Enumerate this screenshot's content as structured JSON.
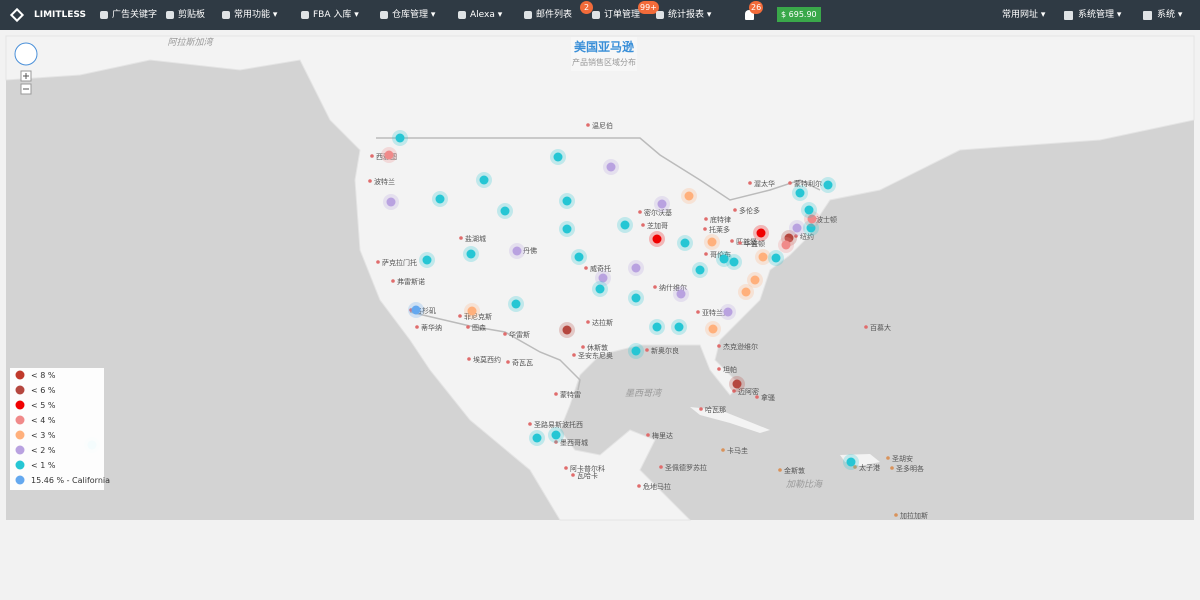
{
  "nav": {
    "brand": "LIMITLESS",
    "items": [
      {
        "label": "广告关键字"
      },
      {
        "label": "剪贴板"
      },
      {
        "label": "常用功能"
      },
      {
        "label": "FBA 入库"
      },
      {
        "label": "仓库管理"
      },
      {
        "label": "Alexa"
      },
      {
        "label": "邮件列表",
        "badge": "2"
      },
      {
        "label": "订单管理",
        "badge": "99+"
      },
      {
        "label": "统计报表"
      }
    ],
    "notifications": "26",
    "balance": "$ 695.90",
    "right": [
      {
        "label": "常用网址"
      },
      {
        "label": "系统管理"
      },
      {
        "label": "系统"
      }
    ]
  },
  "map": {
    "title": "美国亚马逊",
    "subtitle": "产品销售区域分布",
    "legend": [
      {
        "label": "< 8 %",
        "color": "#c0392b"
      },
      {
        "label": "< 6 %",
        "color": "#b5473f"
      },
      {
        "label": "< 5 %",
        "color": "#f00000"
      },
      {
        "label": "< 4 %",
        "color": "#f08a8a"
      },
      {
        "label": "< 3 %",
        "color": "#ffb07c"
      },
      {
        "label": "< 2 %",
        "color": "#b9a2e0"
      },
      {
        "label": "< 1 %",
        "color": "#26c6d4"
      },
      {
        "label": "15.46 % - California",
        "color": "#64a8ef"
      }
    ],
    "seas": [
      "阿拉斯加湾",
      "墨西哥湾",
      "加勒比海"
    ],
    "cities": [
      "温尼伯",
      "西雅图",
      "波特兰",
      "萨克拉门托",
      "弗雷斯诺",
      "洛杉矶",
      "蒂华纳",
      "盐湖城",
      "丹佛",
      "菲尼克斯",
      "图森",
      "华雷斯",
      "埃莫西约",
      "奇瓦瓦",
      "密尔沃基",
      "芝加哥",
      "底特律",
      "托莱多",
      "多伦多",
      "渥太华",
      "蒙特利尔",
      "波士顿",
      "纽约",
      "匹兹堡",
      "哥伦布",
      "华盛顿",
      "威奇托",
      "纳什维尔",
      "亚特兰大",
      "达拉斯",
      "休斯敦",
      "圣安东尼奥",
      "新奥尔良",
      "杰克逊维尔",
      "坦帕",
      "迈阿密",
      "拿骚",
      "哈瓦那",
      "百慕大",
      "蒙特雷",
      "圣路易斯波托西",
      "墨西哥城",
      "梅里达",
      "阿卡普尔科",
      "瓦哈卡",
      "危地马拉",
      "圣佩德罗苏拉",
      "卡马圭",
      "金斯敦",
      "太子港",
      "圣多明各",
      "圣胡安",
      "加拉加斯"
    ]
  }
}
